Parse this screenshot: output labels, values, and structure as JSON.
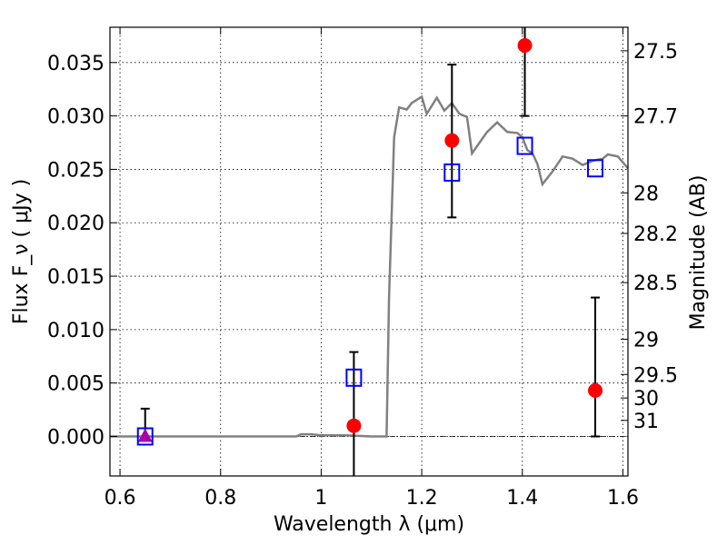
{
  "chart_data": {
    "type": "scatter",
    "xlabel": "Wavelength  λ (μm)",
    "ylabel": "Flux  F_ν  ( μJy )",
    "y2label": "Magnitude (AB)",
    "xlim": [
      0.58,
      1.61
    ],
    "ylim": [
      -0.0037,
      0.0383
    ],
    "grid": true,
    "x_ticks": [
      0.6,
      0.8,
      1.0,
      1.2,
      1.4,
      1.6
    ],
    "x_tick_labels": [
      "0.6",
      "0.8",
      "1",
      "1.2",
      "1.4",
      "1.6"
    ],
    "y_ticks": [
      0.0,
      0.005,
      0.01,
      0.015,
      0.02,
      0.025,
      0.03,
      0.035
    ],
    "y_tick_labels": [
      "0.000",
      "0.005",
      "0.010",
      "0.015",
      "0.020",
      "0.025",
      "0.030",
      "0.035"
    ],
    "y2_ticks": [
      {
        "label": "27.5",
        "flux": 0.0361
      },
      {
        "label": "27.7",
        "flux": 0.03
      },
      {
        "label": "28",
        "flux": 0.0228
      },
      {
        "label": "28.2",
        "flux": 0.019
      },
      {
        "label": "28.5",
        "flux": 0.0144
      },
      {
        "label": "29",
        "flux": 0.0091
      },
      {
        "label": "29.5",
        "flux": 0.0058
      },
      {
        "label": "30",
        "flux": 0.0036
      },
      {
        "label": "31",
        "flux": 0.0015
      }
    ],
    "colors": {
      "model": "#808080",
      "observed": "#ff0000",
      "model_photometry": "#0000ff",
      "upper_limit": "#aa00aa",
      "errorbar": "#000000"
    },
    "series": [
      {
        "type": "line",
        "x": [
          0.58,
          0.95,
          0.96,
          0.98,
          1.0,
          1.05,
          1.1,
          1.13,
          1.135,
          1.145,
          1.155,
          1.17,
          1.18,
          1.2,
          1.21,
          1.23,
          1.245,
          1.26,
          1.275,
          1.29,
          1.3,
          1.315,
          1.33,
          1.35,
          1.37,
          1.39,
          1.4,
          1.41,
          1.42,
          1.43,
          1.44,
          1.46,
          1.48,
          1.5,
          1.52,
          1.54,
          1.56,
          1.57,
          1.59,
          1.61
        ],
        "y": [
          0.0,
          0.0,
          0.0002,
          0.0002,
          0.0001,
          0.0001,
          0.0,
          0.0,
          0.013,
          0.028,
          0.0308,
          0.0306,
          0.0312,
          0.0318,
          0.0302,
          0.0317,
          0.0305,
          0.0312,
          0.0302,
          0.0299,
          0.0265,
          0.0275,
          0.0285,
          0.0294,
          0.0285,
          0.0284,
          0.028,
          0.0268,
          0.0265,
          0.0255,
          0.0236,
          0.0248,
          0.0262,
          0.026,
          0.0254,
          0.0258,
          0.026,
          0.0264,
          0.0262,
          0.0251
        ]
      },
      {
        "type": "scatter",
        "marker": "circle",
        "x": [
          1.065,
          1.26,
          1.405,
          1.545
        ],
        "y": [
          0.001,
          0.0277,
          0.0366,
          0.0043
        ],
        "yerr_low": [
          0.009,
          0.0072,
          0.0066,
          0.0043
        ],
        "yerr_high": [
          0.0069,
          0.0071,
          0.0034,
          0.0087
        ]
      },
      {
        "type": "scatter",
        "marker": "triangle",
        "x": [
          0.65
        ],
        "y": [
          0.0
        ],
        "yerr_low": [
          0.0
        ],
        "yerr_high": [
          0.0026
        ]
      },
      {
        "type": "scatter",
        "marker": "open-square",
        "x": [
          0.65,
          1.065,
          1.26,
          1.405,
          1.545
        ],
        "y": [
          0.0,
          0.0055,
          0.0247,
          0.0272,
          0.0251
        ]
      }
    ]
  }
}
